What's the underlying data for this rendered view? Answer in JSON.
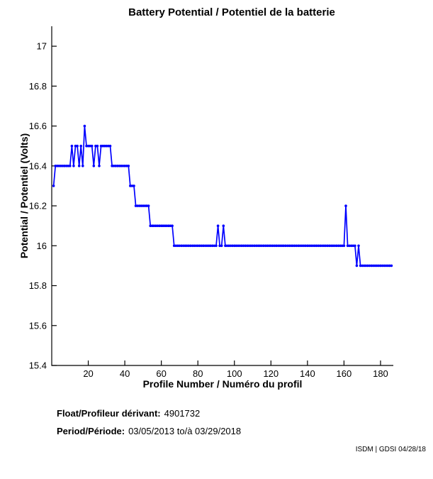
{
  "footer": {
    "float_label": "Float/Profileur dérivant:",
    "float_value": "4901732",
    "period_label": "Period/Période:",
    "period_value": "03/05/2013 to/à 03/29/2018",
    "credit": "ISDM | GDSI 04/28/18"
  },
  "chart_data": {
    "type": "line",
    "title": "Battery Potential / Potentiel de la batterie",
    "xlabel": "Profile Number / Numéro du profil",
    "ylabel": "Potential / Potentiel (Volts)",
    "xlim": [
      0,
      187
    ],
    "ylim": [
      15.4,
      17.1
    ],
    "xticks": [
      20,
      40,
      60,
      80,
      100,
      120,
      140,
      160,
      180
    ],
    "yticks": [
      15.4,
      15.6,
      15.8,
      16,
      16.2,
      16.4,
      16.6,
      16.8,
      17
    ],
    "grid": false,
    "legend": "none",
    "line_color": "#0000FF",
    "marker": "dot",
    "series": [
      {
        "name": "battery-potential",
        "x_start": 1,
        "x_step": 1,
        "values": [
          16.3,
          16.4,
          16.4,
          16.4,
          16.4,
          16.4,
          16.4,
          16.4,
          16.4,
          16.4,
          16.5,
          16.4,
          16.5,
          16.5,
          16.4,
          16.5,
          16.4,
          16.6,
          16.5,
          16.5,
          16.5,
          16.5,
          16.4,
          16.5,
          16.5,
          16.4,
          16.5,
          16.5,
          16.5,
          16.5,
          16.5,
          16.5,
          16.4,
          16.4,
          16.4,
          16.4,
          16.4,
          16.4,
          16.4,
          16.4,
          16.4,
          16.4,
          16.3,
          16.3,
          16.3,
          16.2,
          16.2,
          16.2,
          16.2,
          16.2,
          16.2,
          16.2,
          16.2,
          16.1,
          16.1,
          16.1,
          16.1,
          16.1,
          16.1,
          16.1,
          16.1,
          16.1,
          16.1,
          16.1,
          16.1,
          16.1,
          16.0,
          16.0,
          16.0,
          16.0,
          16.0,
          16.0,
          16.0,
          16.0,
          16.0,
          16.0,
          16.0,
          16.0,
          16.0,
          16.0,
          16.0,
          16.0,
          16.0,
          16.0,
          16.0,
          16.0,
          16.0,
          16.0,
          16.0,
          16.0,
          16.1,
          16.0,
          16.0,
          16.1,
          16.0,
          16.0,
          16.0,
          16.0,
          16.0,
          16.0,
          16.0,
          16.0,
          16.0,
          16.0,
          16.0,
          16.0,
          16.0,
          16.0,
          16.0,
          16.0,
          16.0,
          16.0,
          16.0,
          16.0,
          16.0,
          16.0,
          16.0,
          16.0,
          16.0,
          16.0,
          16.0,
          16.0,
          16.0,
          16.0,
          16.0,
          16.0,
          16.0,
          16.0,
          16.0,
          16.0,
          16.0,
          16.0,
          16.0,
          16.0,
          16.0,
          16.0,
          16.0,
          16.0,
          16.0,
          16.0,
          16.0,
          16.0,
          16.0,
          16.0,
          16.0,
          16.0,
          16.0,
          16.0,
          16.0,
          16.0,
          16.0,
          16.0,
          16.0,
          16.0,
          16.0,
          16.0,
          16.0,
          16.0,
          16.0,
          16.0,
          16.2,
          16.0,
          16.0,
          16.0,
          16.0,
          16.0,
          15.9,
          16.0,
          15.9,
          15.9,
          15.9,
          15.9,
          15.9,
          15.9,
          15.9,
          15.9,
          15.9,
          15.9,
          15.9,
          15.9,
          15.9,
          15.9,
          15.9,
          15.9,
          15.9,
          15.9
        ]
      }
    ]
  }
}
